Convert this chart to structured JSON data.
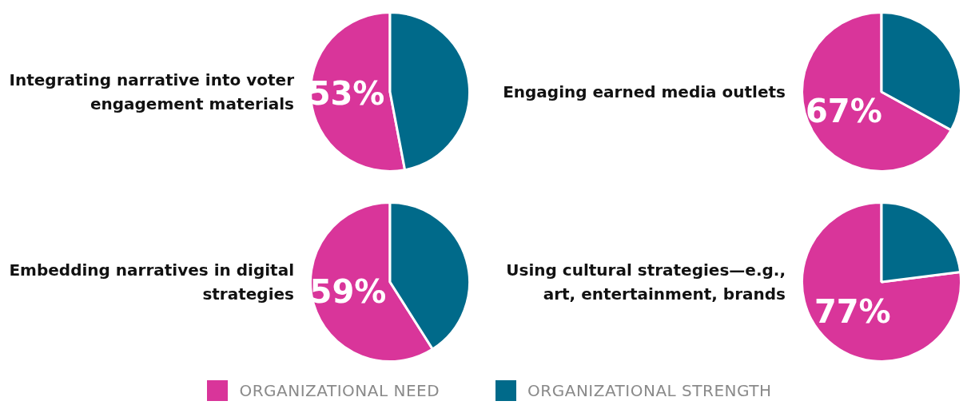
{
  "chart_data": [
    {
      "type": "pie",
      "title": "Integrating narrative into voter engagement materials",
      "categories": [
        "ORGANIZATIONAL NEED",
        "ORGANIZATIONAL STRENGTH"
      ],
      "values": [
        53,
        47
      ],
      "colors": [
        "#d9359a",
        "#006a8a"
      ],
      "value_labels": [
        "53%",
        null
      ],
      "legend": "bottom"
    },
    {
      "type": "pie",
      "title": "Engaging earned media outlets",
      "categories": [
        null,
        null
      ],
      "values": [
        67,
        33
      ],
      "colors": [
        "#d9359a",
        "#006a8a"
      ],
      "value_labels": [
        "67%",
        null
      ]
    },
    {
      "type": "pie",
      "title": "Embedding narratives in digital strategies",
      "categories": [
        null,
        null
      ],
      "values": [
        59,
        41
      ],
      "colors": [
        "#d9359a",
        "#006a8a"
      ],
      "value_labels": [
        "59%",
        null
      ]
    },
    {
      "type": "pie",
      "title": "Using cultural strategies—e.g., art, entertainment, brands",
      "categories": [
        null,
        null
      ],
      "values": [
        77,
        23
      ],
      "colors": [
        "#d9359a",
        "#006a8a"
      ],
      "value_labels": [
        "77%",
        null
      ]
    }
  ]
}
